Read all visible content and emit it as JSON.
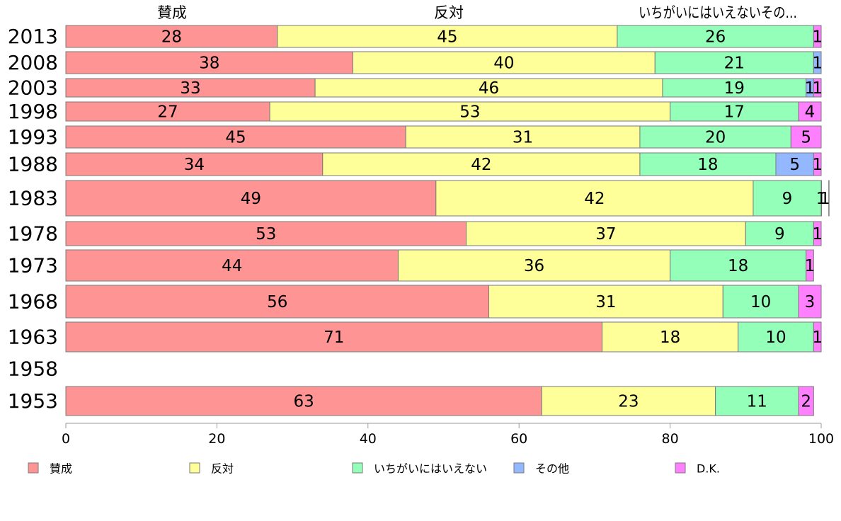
{
  "chart_data": {
    "type": "bar",
    "orientation": "horizontal",
    "stacked": true,
    "categories": [
      "2013",
      "2008",
      "2003",
      "1998",
      "1993",
      "1988",
      "1983",
      "1978",
      "1973",
      "1968",
      "1963",
      "1958",
      "1953"
    ],
    "series": [
      {
        "name": "賛成",
        "color": "#ff9494",
        "values": [
          28,
          38,
          33,
          27,
          45,
          34,
          49,
          53,
          44,
          56,
          71,
          null,
          63
        ]
      },
      {
        "name": "反対",
        "color": "#ffff99",
        "values": [
          45,
          40,
          46,
          53,
          31,
          42,
          42,
          37,
          36,
          31,
          18,
          null,
          23
        ]
      },
      {
        "name": "いちがいにはいえない",
        "color": "#94ffb8",
        "values": [
          26,
          21,
          19,
          17,
          20,
          18,
          9,
          9,
          18,
          10,
          10,
          null,
          11
        ]
      },
      {
        "name": "その他",
        "color": "#94b8ff",
        "values": [
          0,
          1,
          1,
          0,
          0,
          5,
          1,
          0,
          0,
          0,
          0,
          null,
          0
        ]
      },
      {
        "name": "D.K.",
        "color": "#ff80ff",
        "values": [
          1,
          0,
          1,
          4,
          5,
          1,
          1,
          1,
          1,
          3,
          1,
          null,
          2
        ]
      }
    ],
    "top_labels": [
      "賛成",
      "反対",
      "いちがいにはいえないその..."
    ],
    "xlim": [
      0,
      100
    ],
    "xticks": [
      "0",
      "20",
      "40",
      "60",
      "80",
      "100"
    ],
    "legend": [
      "賛成",
      "反対",
      "いちがいにはいえない",
      "その他",
      "D.K."
    ],
    "legend_position": "bottom",
    "grid": false
  }
}
